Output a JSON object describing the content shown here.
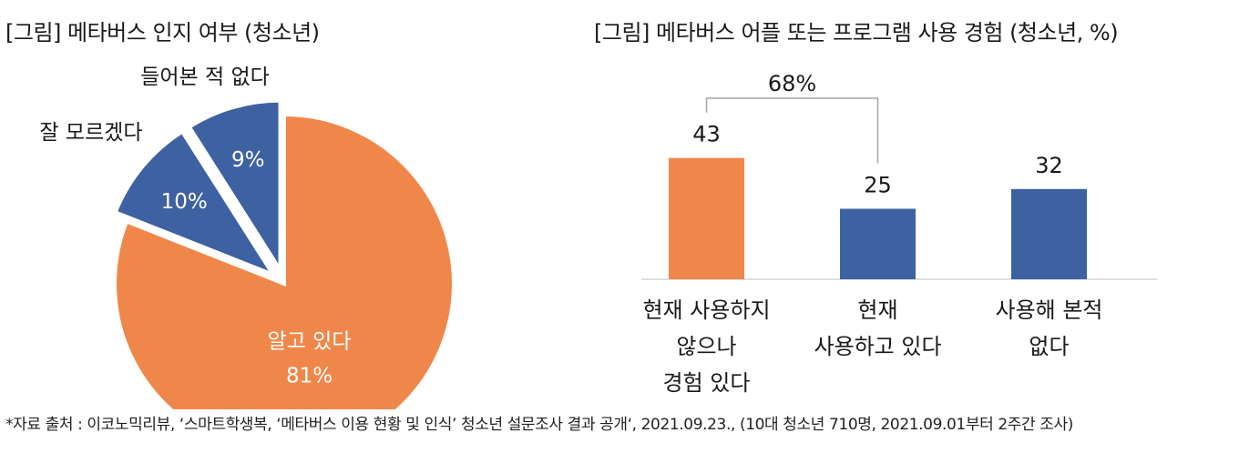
{
  "chart_data": [
    {
      "type": "pie",
      "title": "[그림] 메타버스 인지 여부 (청소년)",
      "slices": [
        {
          "label": "알고 있다",
          "value": 81,
          "value_label": "81%",
          "color": "#F0874A",
          "exploded": false
        },
        {
          "label": "잘 모르겠다",
          "value": 10,
          "value_label": "10%",
          "color": "#3E62A1",
          "exploded": true
        },
        {
          "label": "들어본 적 없다",
          "value": 9,
          "value_label": "9%",
          "color": "#3E62A1",
          "exploded": true
        }
      ]
    },
    {
      "type": "bar",
      "title": "[그림] 메타버스 어플 또는 프로그램 사용 경험 (청소년, %)",
      "categories": [
        [
          "현재 사용하지",
          "않으나",
          "경험 있다"
        ],
        [
          "현재",
          "사용하고 있다"
        ],
        [
          "사용해 본적",
          "없다"
        ]
      ],
      "values": [
        43,
        25,
        32
      ],
      "colors": [
        "#F0874A",
        "#3E62A1",
        "#3E62A1"
      ],
      "bracket_label": "68%",
      "bracket_spans": [
        0,
        1
      ],
      "xlabel": "",
      "ylabel": ""
    }
  ],
  "footnote": "*자료 출처 : 이코노믹리뷰, ‘스마트학생복, ‘메타버스 이용 현황 및 인식’ 청소년 설문조사 결과 공개‘, 2021.09.23., (10대 청소년 710명, 2021.09.01부터 2주간 조사)"
}
